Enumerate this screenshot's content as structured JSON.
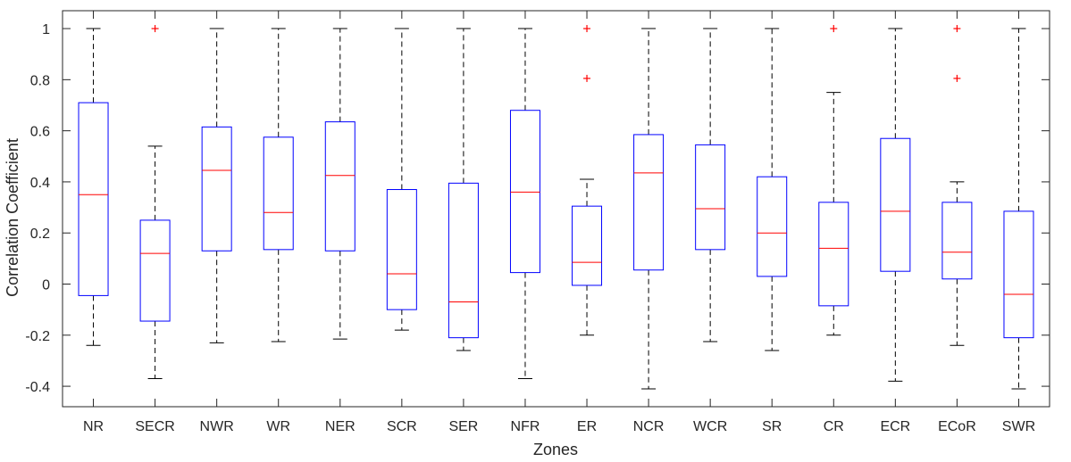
{
  "chart_data": {
    "type": "boxplot",
    "title": "",
    "xlabel": "Zones",
    "ylabel": "Correlation Coefficient",
    "ylim": [
      -0.48,
      1.07
    ],
    "yticks": [
      -0.4,
      -0.2,
      0,
      0.2,
      0.4,
      0.6,
      0.8,
      1
    ],
    "ytick_labels": [
      "-0.4",
      "-0.2",
      "0",
      "0.2",
      "0.4",
      "0.6",
      "0.8",
      "1"
    ],
    "grid": false,
    "categories": [
      "NR",
      "SECR",
      "NWR",
      "WR",
      "NER",
      "SCR",
      "SER",
      "NFR",
      "ER",
      "NCR",
      "WCR",
      "SR",
      "CR",
      "ECR",
      "ECoR",
      "SWR"
    ],
    "boxes": [
      {
        "zone": "NR",
        "whisker_low": -0.24,
        "q1": -0.045,
        "median": 0.35,
        "q3": 0.71,
        "whisker_high": 1.0,
        "outliers": []
      },
      {
        "zone": "SECR",
        "whisker_low": -0.37,
        "q1": -0.145,
        "median": 0.12,
        "q3": 0.25,
        "whisker_high": 0.54,
        "outliers": [
          1.0
        ]
      },
      {
        "zone": "NWR",
        "whisker_low": -0.23,
        "q1": 0.13,
        "median": 0.445,
        "q3": 0.615,
        "whisker_high": 1.0,
        "outliers": []
      },
      {
        "zone": "WR",
        "whisker_low": -0.225,
        "q1": 0.135,
        "median": 0.28,
        "q3": 0.575,
        "whisker_high": 1.0,
        "outliers": []
      },
      {
        "zone": "NER",
        "whisker_low": -0.215,
        "q1": 0.13,
        "median": 0.425,
        "q3": 0.635,
        "whisker_high": 1.0,
        "outliers": []
      },
      {
        "zone": "SCR",
        "whisker_low": -0.18,
        "q1": -0.1,
        "median": 0.04,
        "q3": 0.37,
        "whisker_high": 1.0,
        "outliers": []
      },
      {
        "zone": "SER",
        "whisker_low": -0.26,
        "q1": -0.21,
        "median": -0.07,
        "q3": 0.395,
        "whisker_high": 1.0,
        "outliers": []
      },
      {
        "zone": "NFR",
        "whisker_low": -0.37,
        "q1": 0.045,
        "median": 0.36,
        "q3": 0.68,
        "whisker_high": 1.0,
        "outliers": []
      },
      {
        "zone": "ER",
        "whisker_low": -0.2,
        "q1": -0.005,
        "median": 0.085,
        "q3": 0.305,
        "whisker_high": 0.41,
        "outliers": [
          1.0,
          0.805
        ]
      },
      {
        "zone": "NCR",
        "whisker_low": -0.41,
        "q1": 0.055,
        "median": 0.435,
        "q3": 0.585,
        "whisker_high": 1.0,
        "outliers": []
      },
      {
        "zone": "WCR",
        "whisker_low": -0.225,
        "q1": 0.135,
        "median": 0.295,
        "q3": 0.545,
        "whisker_high": 1.0,
        "outliers": []
      },
      {
        "zone": "SR",
        "whisker_low": -0.26,
        "q1": 0.03,
        "median": 0.2,
        "q3": 0.42,
        "whisker_high": 1.0,
        "outliers": []
      },
      {
        "zone": "CR",
        "whisker_low": -0.2,
        "q1": -0.085,
        "median": 0.14,
        "q3": 0.32,
        "whisker_high": 0.75,
        "outliers": [
          1.0
        ]
      },
      {
        "zone": "ECR",
        "whisker_low": -0.38,
        "q1": 0.05,
        "median": 0.285,
        "q3": 0.57,
        "whisker_high": 1.0,
        "outliers": []
      },
      {
        "zone": "ECoR",
        "whisker_low": -0.24,
        "q1": 0.02,
        "median": 0.125,
        "q3": 0.32,
        "whisker_high": 0.4,
        "outliers": [
          1.0,
          0.805
        ]
      },
      {
        "zone": "SWR",
        "whisker_low": -0.41,
        "q1": -0.21,
        "median": -0.04,
        "q3": 0.285,
        "whisker_high": 1.0,
        "outliers": []
      }
    ],
    "colors": {
      "box": "#0000ff",
      "median": "#ff0000",
      "whisker": "#000000",
      "outlier": "#ff0000",
      "axis": "#262626"
    }
  }
}
